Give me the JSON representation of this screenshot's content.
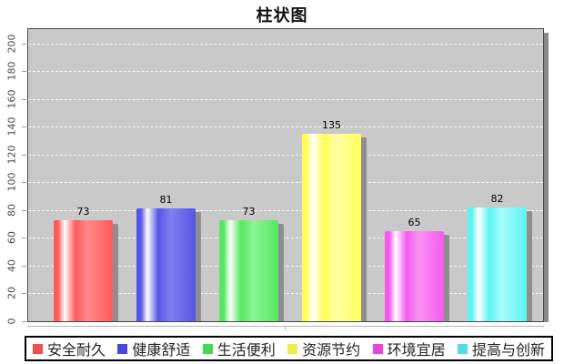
{
  "title": "柱状图",
  "chart_data": {
    "type": "bar",
    "title": "柱状图",
    "categories": [
      "安全耐久",
      "健康舒适",
      "生活便利",
      "资源节约",
      "环境宜居",
      "提高与创新"
    ],
    "values": [
      73,
      81,
      73,
      135,
      65,
      82
    ],
    "series": [
      {
        "name": "安全耐久",
        "value": 73,
        "color": "#ff5a5a",
        "color_light": "#ff8a8a",
        "legend_color": "#ee4e4e"
      },
      {
        "name": "健康舒适",
        "value": 81,
        "color": "#5656e6",
        "color_light": "#8080f0",
        "legend_color": "#4949e0"
      },
      {
        "name": "生活便利",
        "value": 73,
        "color": "#55e862",
        "color_light": "#8cf494",
        "legend_color": "#46d84f"
      },
      {
        "name": "资源节约",
        "value": 135,
        "color": "#ffff57",
        "color_light": "#ffffa6",
        "legend_color": "#efec52"
      },
      {
        "name": "环境宜居",
        "value": 65,
        "color": "#f559ef",
        "color_light": "#fa92f2",
        "legend_color": "#e746dd"
      },
      {
        "name": "提高与创新",
        "value": 82,
        "color": "#5cf4f4",
        "color_light": "#a8fbfb",
        "legend_color": "#52dcec"
      }
    ],
    "xlabel": "",
    "ylabel": "",
    "y_ticks": [
      0,
      20,
      40,
      60,
      80,
      100,
      120,
      140,
      160,
      180,
      200
    ],
    "ylim": [
      0,
      210
    ],
    "grid": true,
    "grid_style": "white-dashed-horizontal",
    "value_labels": true,
    "legend_position": "bottom",
    "plot_background": "#c9c9c9",
    "bar_shadow_color": "#8e8e8e"
  }
}
